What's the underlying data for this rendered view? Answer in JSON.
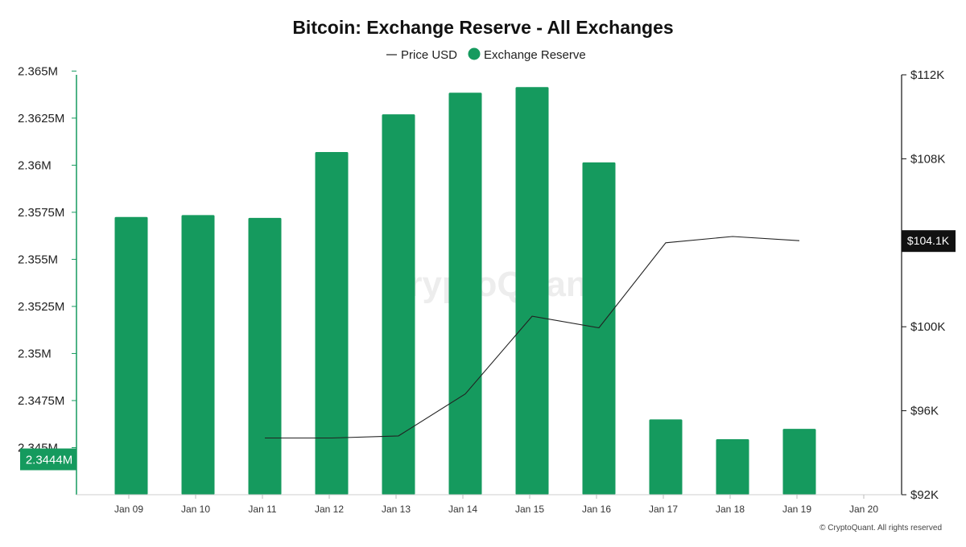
{
  "chart_data": {
    "type": "bar",
    "title": "Bitcoin: Exchange Reserve - All Exchanges",
    "categories": [
      "Jan 09",
      "Jan 10",
      "Jan 11",
      "Jan 12",
      "Jan 13",
      "Jan 14",
      "Jan 15",
      "Jan 16",
      "Jan 17",
      "Jan 18",
      "Jan 19",
      "Jan 20"
    ],
    "series": [
      {
        "name": "Exchange Reserve",
        "type": "bar",
        "axis": "left",
        "color": "#159a5e",
        "values": [
          2.35725,
          2.35735,
          2.3572,
          2.3607,
          2.3627,
          2.36385,
          2.36415,
          2.36015,
          2.3465,
          2.34545,
          2.346,
          null
        ]
      },
      {
        "name": "Price USD",
        "type": "line",
        "axis": "right",
        "color": "#222222",
        "values": [
          null,
          null,
          94700,
          94700,
          94800,
          96800,
          100500,
          99950,
          104000,
          104300,
          104100,
          null
        ]
      }
    ],
    "left_axis": {
      "ylim": [
        2.3425,
        2.3648
      ],
      "ticks": [
        "2.365M",
        "2.3625M",
        "2.36M",
        "2.3575M",
        "2.355M",
        "2.3525M",
        "2.35M",
        "2.3475M",
        "2.345M"
      ],
      "tick_values": [
        2.365,
        2.3625,
        2.36,
        2.3575,
        2.355,
        2.3525,
        2.35,
        2.3475,
        2.345
      ],
      "highlight_label": "2.3444M",
      "highlight_value": 2.3444
    },
    "right_axis": {
      "ylim": [
        92000,
        112000
      ],
      "ticks": [
        "$112K",
        "$108K",
        "$104.1K",
        "$100K",
        "$96K",
        "$92K"
      ],
      "tick_values": [
        112000,
        108000,
        104100,
        100000,
        96000,
        92000
      ],
      "highlight_label": "$104.1K",
      "highlight_value": 104100
    },
    "legend": {
      "placement": "top-center",
      "entries": [
        "Price USD",
        "Exchange Reserve"
      ]
    },
    "grid": false
  },
  "watermark": "CryptoQuant",
  "copyright": "© CryptoQuant. All rights reserved"
}
